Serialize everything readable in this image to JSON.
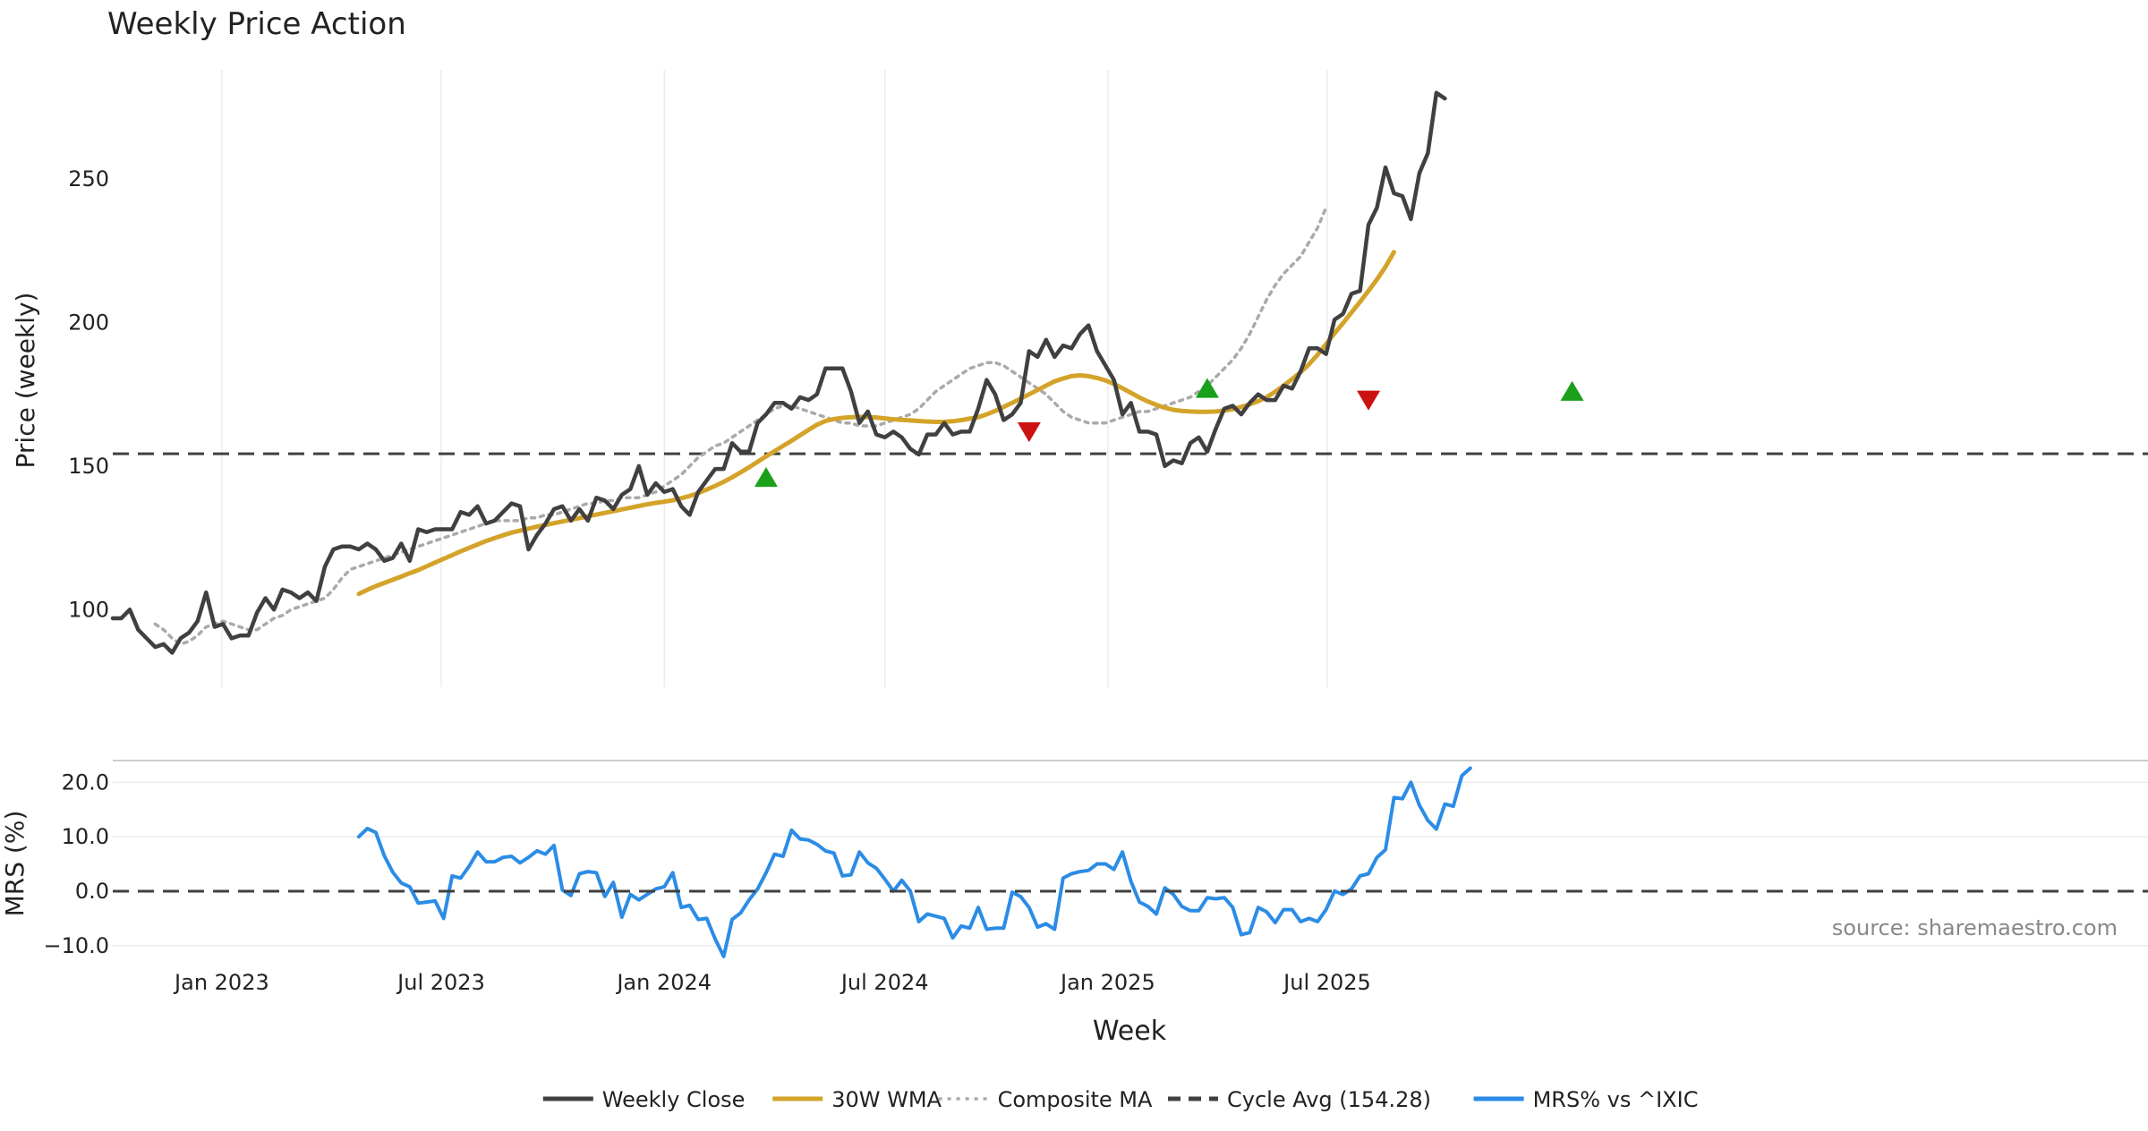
{
  "colors": {
    "close": "#404040",
    "wma": "#D4A32A",
    "composite": "#AAAAAA",
    "cycle": "#404040",
    "mrs": "#2B8CE6",
    "buy": "#1AA01A",
    "sell": "#CC1111",
    "grid": "#EBEBEB",
    "text": "#222222"
  },
  "chart_data": {
    "type": "line",
    "title": "Weekly Price Action",
    "xlabel": "Week",
    "ylabel": "Price (weekly)",
    "watermark": "source: sharemaestro.com",
    "x_start": "2022-10-03",
    "x_interval": "weekly",
    "x_ticks": [
      {
        "label": "Jan 2023",
        "date": "2023-01-01"
      },
      {
        "label": "Jul 2023",
        "date": "2023-07-01"
      },
      {
        "label": "Jan 2024",
        "date": "2024-01-01"
      },
      {
        "label": "Jul 2024",
        "date": "2024-07-01"
      },
      {
        "label": "Jan 2025",
        "date": "2025-01-01"
      },
      {
        "label": "Jul 2025",
        "date": "2025-07-01"
      }
    ],
    "price_panel": {
      "ylim": [
        73,
        288
      ],
      "yticks": [
        "100",
        "150",
        "200",
        "250"
      ],
      "series": [
        {
          "name": "Weekly Close",
          "key": "close",
          "style": "solid",
          "start_index": 0,
          "values": [
            97,
            97,
            100,
            93,
            90,
            87,
            88,
            85,
            90,
            92,
            96,
            106,
            94,
            95,
            90,
            91,
            91,
            99,
            104,
            100,
            107,
            106,
            104,
            106,
            103,
            115,
            121,
            122,
            122,
            121,
            123,
            121,
            117,
            118,
            123,
            117,
            128,
            127,
            128,
            128,
            128,
            134,
            133,
            136,
            130,
            131,
            134,
            137,
            136,
            121,
            126,
            130,
            135,
            136,
            131,
            135,
            131,
            139,
            138,
            135,
            140,
            142,
            150,
            140,
            144,
            141,
            142,
            136,
            133,
            141,
            145,
            149,
            149,
            158,
            155,
            155,
            165,
            168,
            172,
            172,
            170,
            174,
            173,
            175,
            184,
            184,
            184,
            176,
            165,
            169,
            161,
            160,
            162,
            160,
            156,
            154,
            161,
            161,
            165,
            161,
            162,
            162,
            170,
            180,
            175,
            166,
            168,
            172,
            190,
            188,
            194,
            188,
            192,
            191,
            196,
            199,
            190,
            185,
            180,
            168,
            172,
            162,
            162,
            161,
            150,
            152,
            151,
            158,
            160,
            155,
            163,
            170,
            171,
            168,
            172,
            175,
            173,
            173,
            178,
            177,
            183,
            191,
            191,
            189,
            201,
            203,
            210,
            211,
            234,
            240,
            254,
            245,
            244,
            236,
            252,
            259,
            280,
            278
          ]
        },
        {
          "name": "30W WMA",
          "key": "wma",
          "style": "solid",
          "start_index": 29,
          "values": [
            105.5,
            106.9,
            108.2,
            109.3,
            110.4,
            111.5,
            112.7,
            113.8,
            115.1,
            116.4,
            117.7,
            119.0,
            120.3,
            121.5,
            122.7,
            123.9,
            124.9,
            125.9,
            126.8,
            127.5,
            128.2,
            128.9,
            129.5,
            130.1,
            130.7,
            131.3,
            131.9,
            132.5,
            133.1,
            133.7,
            134.3,
            134.9,
            135.5,
            136.1,
            136.7,
            137.2,
            137.6,
            138.1,
            138.8,
            139.6,
            140.6,
            141.8,
            143.1,
            144.5,
            146.1,
            147.8,
            149.6,
            151.5,
            153.4,
            155.2,
            157.0,
            158.8,
            160.7,
            162.6,
            164.4,
            165.7,
            166.4,
            166.8,
            167.0,
            167.1,
            167.1,
            166.9,
            166.6,
            166.3,
            166.1,
            165.9,
            165.7,
            165.5,
            165.4,
            165.4,
            165.6,
            166.0,
            166.5,
            167.0,
            168.0,
            169.2,
            170.6,
            172.0,
            173.5,
            175.0,
            176.5,
            178.0,
            179.5,
            180.5,
            181.3,
            181.6,
            181.3,
            180.7,
            179.8,
            178.6,
            177.1,
            175.5,
            173.9,
            172.5,
            171.3,
            170.3,
            169.6,
            169.2,
            169.0,
            168.9,
            168.9,
            169.0,
            169.3,
            169.8,
            170.6,
            171.5,
            172.6,
            174.0,
            175.9,
            178.0,
            180.3,
            182.7,
            185.5,
            188.8,
            192.5,
            196.2,
            199.8,
            203.5,
            207.2,
            211.0,
            215.0,
            219.4,
            224.5
          ]
        },
        {
          "name": "Composite MA",
          "key": "composite",
          "style": "dotted",
          "start_index": 5,
          "values": [
            95,
            93,
            90,
            88,
            89,
            91,
            94,
            95,
            96,
            95,
            94,
            93,
            93,
            95,
            97,
            98,
            100,
            101,
            102,
            103,
            104,
            107,
            111,
            114,
            115,
            116,
            117,
            118,
            119,
            120,
            121,
            122,
            123,
            124,
            125,
            126,
            127,
            128,
            129,
            130,
            131,
            131,
            131,
            131,
            132,
            132,
            133,
            133,
            134,
            135,
            136,
            137,
            137,
            138,
            138,
            139,
            139,
            139,
            140,
            141,
            143,
            145,
            147,
            150,
            153,
            155,
            157,
            158,
            160,
            162,
            164,
            166,
            168,
            170,
            171,
            171,
            170,
            169,
            168,
            167,
            166,
            165,
            165,
            164,
            164,
            164,
            165,
            166,
            167,
            168,
            170,
            173,
            176,
            178,
            180,
            182,
            184,
            185,
            186,
            186,
            185,
            183,
            181,
            179,
            177,
            175,
            172,
            169,
            167,
            166,
            165,
            165,
            165,
            166,
            167,
            168,
            169,
            169,
            170,
            171,
            172,
            173,
            174,
            176,
            178,
            181,
            184,
            187,
            191,
            196,
            202,
            208,
            213,
            217,
            220,
            223,
            228,
            233,
            240
          ]
        },
        {
          "name": "Cycle Avg (154.28)",
          "key": "cycle",
          "style": "dashed",
          "constant": 154.28
        }
      ],
      "markers": [
        {
          "type": "buy",
          "index": 77,
          "value": 146
        },
        {
          "type": "sell",
          "index": 108,
          "value": 162
        },
        {
          "type": "buy",
          "index": 129,
          "value": 177
        },
        {
          "type": "sell",
          "index": 148,
          "value": 173
        },
        {
          "type": "buy",
          "index": 172,
          "value": 176
        }
      ]
    },
    "mrs_panel": {
      "ylabel": "MRS (%)",
      "ylim": [
        -13,
        24
      ],
      "yticks": [
        "20.0",
        "10.0",
        "0.0",
        "−10.0"
      ],
      "series": [
        {
          "name": "MRS% vs ^IXIC",
          "key": "mrs",
          "style": "solid",
          "start_index": 29,
          "values": [
            10,
            11.5,
            10.8,
            6.5,
            3.5,
            1.5,
            0.8,
            -2.2,
            -2,
            -1.8,
            -5,
            2.8,
            2.4,
            4.6,
            7.2,
            5.4,
            5.4,
            6.2,
            6.4,
            5.2,
            6.2,
            7.4,
            6.8,
            8.4,
            0.2,
            -0.8,
            3.2,
            3.6,
            3.4,
            -1,
            1.6,
            -4.8,
            -0.6,
            -1.6,
            -0.6,
            0.4,
            0.8,
            3.4,
            -3,
            -2.6,
            -5.2,
            -5,
            -8.8,
            -12,
            -5.2,
            -4,
            -1.6,
            0.4,
            3.4,
            6.8,
            6.4,
            11.2,
            9.6,
            9.4,
            8.6,
            7.4,
            7,
            2.8,
            3,
            7.2,
            5.2,
            4.2,
            2.2,
            0,
            2,
            0,
            -5.6,
            -4.2,
            -4.6,
            -5,
            -8.6,
            -6.4,
            -6.8,
            -3,
            -7,
            -6.8,
            -6.8,
            -0.2,
            -1,
            -3,
            -6.6,
            -6,
            -7,
            2.4,
            3.2,
            3.6,
            3.8,
            5,
            5,
            4,
            7.2,
            1.8,
            -2,
            -2.8,
            -4.2,
            0.6,
            -0.6,
            -2.8,
            -3.6,
            -3.6,
            -1.2,
            -1.4,
            -1.2,
            -3,
            -8,
            -7.6,
            -3,
            -3.8,
            -5.8,
            -3.4,
            -3.4,
            -5.6,
            -5,
            -5.6,
            -3.4,
            0,
            -0.6,
            0.4,
            2.8,
            3.2,
            6.2,
            7.6,
            17.2,
            17,
            20,
            15.8,
            13,
            11.4,
            16,
            15.6,
            21.2,
            22.6
          ]
        },
        {
          "name": "zero",
          "key": "cycle",
          "style": "dashed",
          "constant": 0
        }
      ]
    },
    "legend": [
      {
        "label": "Weekly Close",
        "key": "close",
        "style": "solid"
      },
      {
        "label": "30W WMA",
        "key": "wma",
        "style": "solid"
      },
      {
        "label": "Composite MA",
        "key": "composite",
        "style": "dotted"
      },
      {
        "label": "Cycle Avg (154.28)",
        "key": "cycle",
        "style": "dashed"
      },
      {
        "label": "MRS% vs ^IXIC",
        "key": "mrs",
        "style": "solid"
      }
    ],
    "legend_position": "bottom-center"
  }
}
